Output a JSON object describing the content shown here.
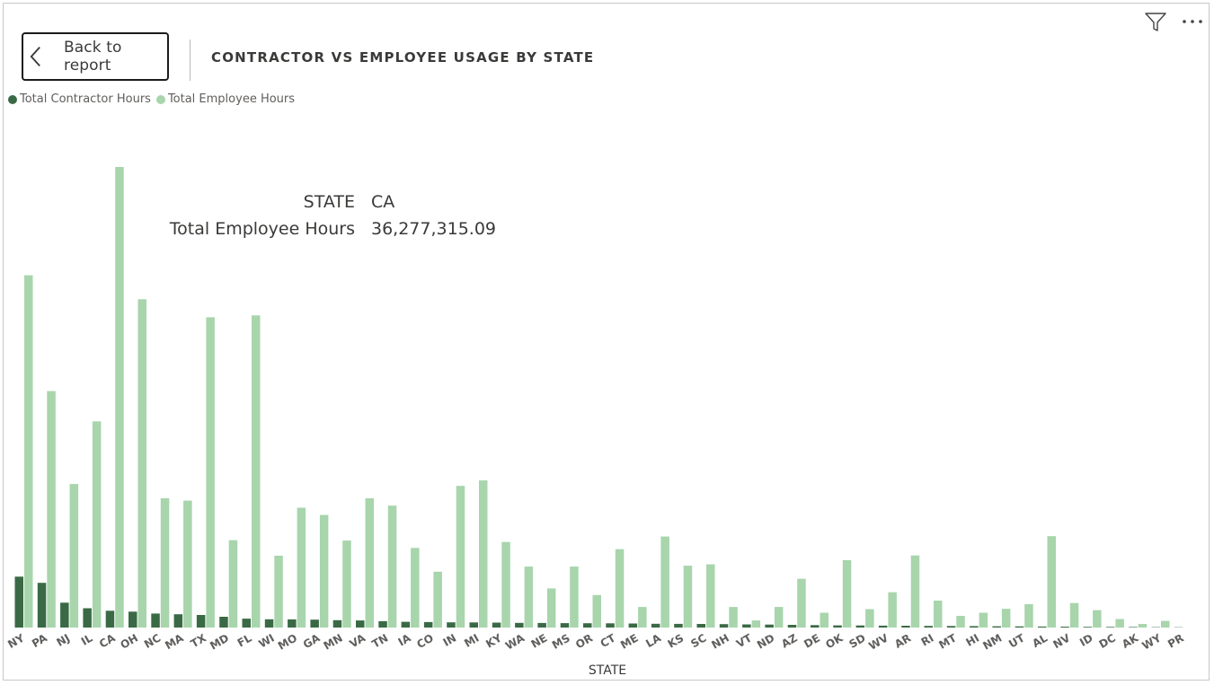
{
  "header": {
    "back_label": "Back to report",
    "title": "CONTRACTOR VS EMPLOYEE USAGE BY STATE"
  },
  "icons": {
    "filter": "filter-icon",
    "more": "more-options-icon",
    "back": "chevron-left-icon"
  },
  "colors": {
    "contractor": "#3a6a45",
    "employee": "#a8d5ac"
  },
  "tooltip": {
    "key1": "STATE",
    "val1": "CA",
    "key2": "Total Employee Hours",
    "val2": "36,277,315.09"
  },
  "chart_data": {
    "type": "bar",
    "xlabel": "STATE",
    "ylabel": "",
    "legend_position": "top-left",
    "grid": false,
    "ylim": [
      0,
      36277315.09
    ],
    "categories": [
      "NY",
      "PA",
      "NJ",
      "IL",
      "CA",
      "OH",
      "NC",
      "MA",
      "TX",
      "MD",
      "FL",
      "WI",
      "MO",
      "GA",
      "MN",
      "VA",
      "TN",
      "IA",
      "CO",
      "IN",
      "MI",
      "KY",
      "WA",
      "NE",
      "MS",
      "OR",
      "CT",
      "ME",
      "LA",
      "KS",
      "SC",
      "NH",
      "VT",
      "ND",
      "AZ",
      "DE",
      "OK",
      "SD",
      "WV",
      "AR",
      "RI",
      "MT",
      "HI",
      "NM",
      "UT",
      "AL",
      "NV",
      "ID",
      "DC",
      "AK",
      "WY",
      "PR"
    ],
    "series": [
      {
        "name": "Total Contractor Hours",
        "values": [
          4010000,
          3520000,
          1960000,
          1520000,
          1320000,
          1250000,
          1100000,
          1050000,
          990000,
          850000,
          700000,
          650000,
          640000,
          620000,
          580000,
          560000,
          500000,
          450000,
          430000,
          410000,
          400000,
          390000,
          370000,
          360000,
          350000,
          340000,
          330000,
          320000,
          300000,
          290000,
          280000,
          270000,
          250000,
          230000,
          210000,
          190000,
          170000,
          160000,
          150000,
          140000,
          130000,
          120000,
          110000,
          100000,
          90000,
          80000,
          70000,
          60000,
          50000,
          40000,
          30000,
          20000
        ]
      },
      {
        "name": "Total Employee Hours",
        "values": [
          27750000,
          18630000,
          11310000,
          16240000,
          36277315.09,
          25860000,
          10180000,
          10000000,
          24440000,
          6880000,
          24590000,
          5660000,
          9440000,
          8870000,
          6850000,
          10180000,
          9600000,
          6270000,
          4400000,
          11160000,
          11590000,
          6740000,
          4800000,
          3080000,
          4800000,
          2560000,
          6170000,
          1620000,
          7170000,
          4870000,
          4980000,
          1620000,
          560000,
          1620000,
          3840000,
          1170000,
          5310000,
          1450000,
          2780000,
          5680000,
          2120000,
          920000,
          1170000,
          1480000,
          1840000,
          7200000,
          1930000,
          1370000,
          670000,
          280000,
          520000,
          0
        ]
      }
    ]
  }
}
